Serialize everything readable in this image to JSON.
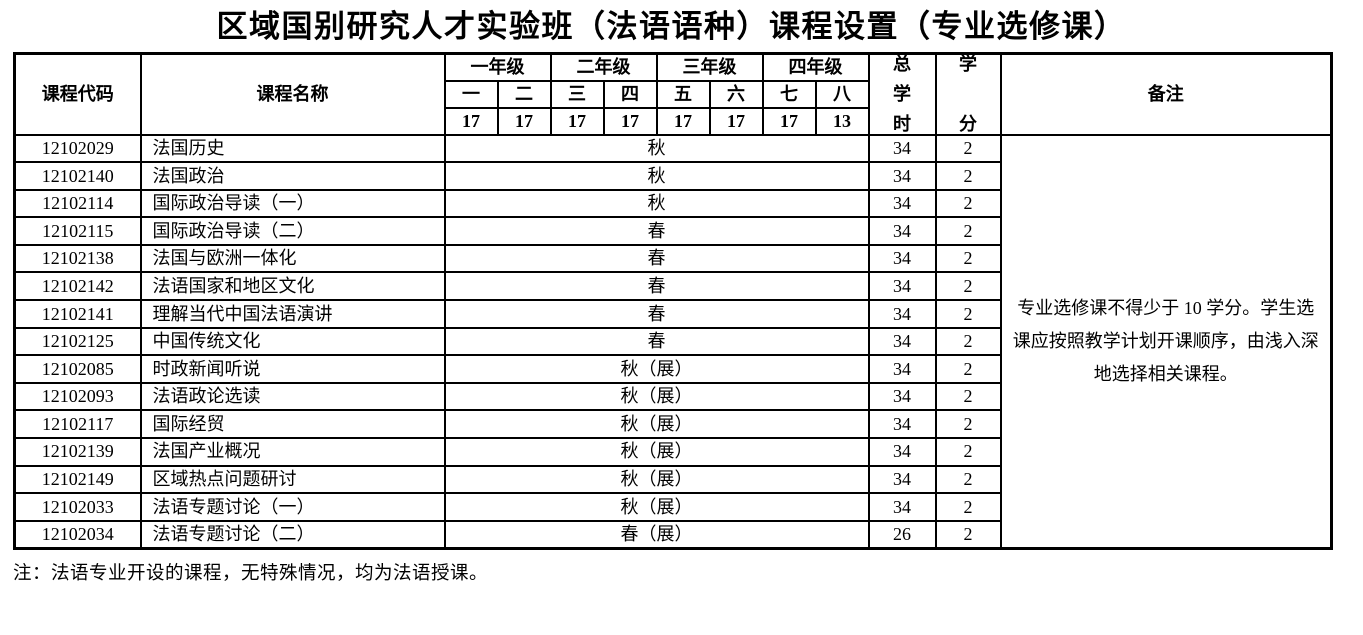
{
  "title": "区域国别研究人才实验班（法语语种）课程设置（专业选修课）",
  "table": {
    "headers": {
      "course_code": "课程代码",
      "course_name": "课程名称",
      "grades": [
        {
          "label": "一年级",
          "semesters": [
            "一",
            "二"
          ],
          "weeks": [
            "17",
            "17"
          ]
        },
        {
          "label": "二年级",
          "semesters": [
            "三",
            "四"
          ],
          "weeks": [
            "17",
            "17"
          ]
        },
        {
          "label": "三年级",
          "semesters": [
            "五",
            "六"
          ],
          "weeks": [
            "17",
            "17"
          ]
        },
        {
          "label": "四年级",
          "semesters": [
            "七",
            "八"
          ],
          "weeks": [
            "17",
            "13"
          ]
        }
      ],
      "total_hours": "总学时",
      "credits": "学分",
      "remarks": "备注"
    },
    "rows": [
      {
        "code": "12102029",
        "name": "法国历史",
        "term": "秋",
        "hours": "34",
        "credits": "2"
      },
      {
        "code": "12102140",
        "name": "法国政治",
        "term": "秋",
        "hours": "34",
        "credits": "2"
      },
      {
        "code": "12102114",
        "name": "国际政治导读（一）",
        "term": "秋",
        "hours": "34",
        "credits": "2"
      },
      {
        "code": "12102115",
        "name": "国际政治导读（二）",
        "term": "春",
        "hours": "34",
        "credits": "2"
      },
      {
        "code": "12102138",
        "name": "法国与欧洲一体化",
        "term": "春",
        "hours": "34",
        "credits": "2"
      },
      {
        "code": "12102142",
        "name": "法语国家和地区文化",
        "term": "春",
        "hours": "34",
        "credits": "2"
      },
      {
        "code": "12102141",
        "name": "理解当代中国法语演讲",
        "term": "春",
        "hours": "34",
        "credits": "2"
      },
      {
        "code": "12102125",
        "name": "中国传统文化",
        "term": "春",
        "hours": "34",
        "credits": "2"
      },
      {
        "code": "12102085",
        "name": "时政新闻听说",
        "term": "秋（展）",
        "hours": "34",
        "credits": "2"
      },
      {
        "code": "12102093",
        "name": "法语政论选读",
        "term": "秋（展）",
        "hours": "34",
        "credits": "2"
      },
      {
        "code": "12102117",
        "name": "国际经贸",
        "term": "秋（展）",
        "hours": "34",
        "credits": "2"
      },
      {
        "code": "12102139",
        "name": "法国产业概况",
        "term": "秋（展）",
        "hours": "34",
        "credits": "2"
      },
      {
        "code": "12102149",
        "name": "区域热点问题研讨",
        "term": "秋（展）",
        "hours": "34",
        "credits": "2"
      },
      {
        "code": "12102033",
        "name": "法语专题讨论（一）",
        "term": "秋（展）",
        "hours": "34",
        "credits": "2"
      },
      {
        "code": "12102034",
        "name": "法语专题讨论（二）",
        "term": "春（展）",
        "hours": "26",
        "credits": "2"
      }
    ],
    "remarks_text": "专业选修课不得少于 10 学分。学生选课应按照教学计划开课顺序，由浅入深地选择相关课程。"
  },
  "footnote": "注：法语专业开设的课程，无特殊情况，均为法语授课。"
}
